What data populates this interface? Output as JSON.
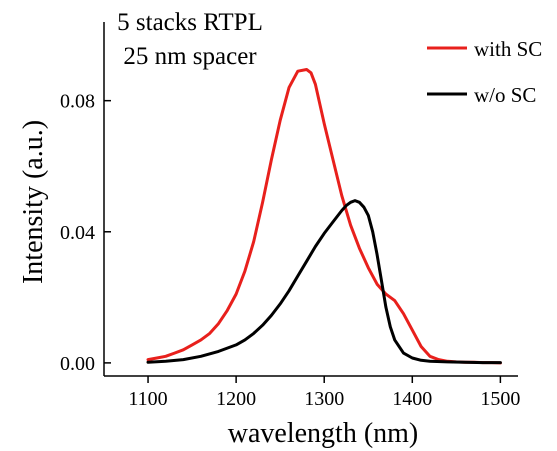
{
  "chart_data": {
    "type": "line",
    "title": "5 stacks RTPL",
    "subtitle": "25 nm spacer",
    "xlabel": "wavelength (nm)",
    "ylabel": "Intensity (a.u.)",
    "xlim": [
      1050,
      1520
    ],
    "ylim": [
      -0.004,
      0.104
    ],
    "x_ticks": [
      1100,
      1200,
      1300,
      1400,
      1500
    ],
    "x_tick_labels": [
      "1100",
      "1200",
      "1300",
      "1400",
      "1500"
    ],
    "y_ticks": [
      0.0,
      0.04,
      0.08
    ],
    "y_tick_labels": [
      "0.00",
      "0.04",
      "0.08"
    ],
    "grid": false,
    "legend_position": "top-right",
    "series": [
      {
        "name": "with SC",
        "color": "#e8201c",
        "x": [
          1100,
          1110,
          1120,
          1130,
          1140,
          1150,
          1160,
          1170,
          1180,
          1190,
          1200,
          1210,
          1220,
          1230,
          1240,
          1250,
          1260,
          1270,
          1280,
          1285,
          1290,
          1300,
          1310,
          1320,
          1330,
          1340,
          1350,
          1360,
          1370,
          1380,
          1390,
          1400,
          1410,
          1420,
          1430,
          1440,
          1450,
          1460,
          1470,
          1480,
          1490,
          1500
        ],
        "y": [
          0.001,
          0.0015,
          0.002,
          0.003,
          0.004,
          0.0055,
          0.007,
          0.009,
          0.012,
          0.016,
          0.021,
          0.028,
          0.037,
          0.049,
          0.062,
          0.074,
          0.084,
          0.089,
          0.0895,
          0.0885,
          0.085,
          0.073,
          0.062,
          0.051,
          0.042,
          0.035,
          0.029,
          0.024,
          0.021,
          0.019,
          0.015,
          0.01,
          0.005,
          0.002,
          0.001,
          0.0005,
          0.0003,
          0.0002,
          0.0002,
          0.0001,
          0.0001,
          0.0
        ]
      },
      {
        "name": "w/o SC",
        "color": "#000000",
        "x": [
          1100,
          1120,
          1140,
          1160,
          1180,
          1200,
          1210,
          1220,
          1230,
          1240,
          1250,
          1260,
          1270,
          1280,
          1290,
          1300,
          1310,
          1320,
          1325,
          1330,
          1335,
          1340,
          1345,
          1350,
          1355,
          1360,
          1365,
          1370,
          1375,
          1380,
          1390,
          1400,
          1410,
          1420,
          1440,
          1460,
          1480,
          1500
        ],
        "y": [
          0.0002,
          0.0005,
          0.001,
          0.002,
          0.0035,
          0.0055,
          0.007,
          0.009,
          0.0115,
          0.0145,
          0.018,
          0.022,
          0.0265,
          0.031,
          0.0355,
          0.0395,
          0.043,
          0.0465,
          0.048,
          0.049,
          0.0495,
          0.049,
          0.0475,
          0.045,
          0.04,
          0.033,
          0.025,
          0.017,
          0.011,
          0.007,
          0.003,
          0.0015,
          0.0008,
          0.0005,
          0.0003,
          0.0002,
          0.0001,
          0.0001
        ]
      }
    ]
  }
}
